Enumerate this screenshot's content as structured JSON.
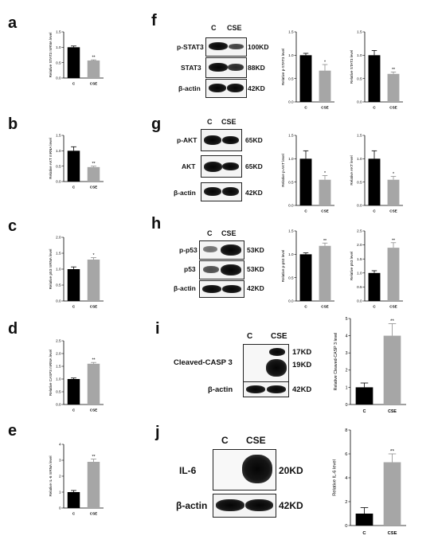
{
  "panels": {
    "a": "a",
    "b": "b",
    "c": "c",
    "d": "d",
    "e": "e",
    "f": "f",
    "g": "g",
    "h": "h",
    "i": "i",
    "j": "j"
  },
  "colors": {
    "control": "#000000",
    "cse": "#a6a6a6"
  },
  "blots": {
    "f": {
      "cols": [
        "C",
        "CSE"
      ],
      "rows": [
        {
          "name": "p-STAT3",
          "size": "100KD"
        },
        {
          "name": "STAT3",
          "size": "88KD"
        },
        {
          "name": "β-actin",
          "size": "42KD"
        }
      ]
    },
    "g": {
      "cols": [
        "C",
        "CSE"
      ],
      "rows": [
        {
          "name": "p-AKT",
          "size": "65KD"
        },
        {
          "name": "AKT",
          "size": "65KD"
        },
        {
          "name": "β-actin",
          "size": "42KD"
        }
      ]
    },
    "h": {
      "cols": [
        "C",
        "CSE"
      ],
      "rows": [
        {
          "name": "p-p53",
          "size": "53KD"
        },
        {
          "name": "p53",
          "size": "53KD"
        },
        {
          "name": "β-actin",
          "size": "42KD"
        }
      ]
    },
    "i": {
      "cols": [
        "C",
        "CSE"
      ],
      "rows": [
        {
          "name": "Cleaved-CASP 3",
          "size": "17KD",
          "size2": "19KD"
        },
        {
          "name": "β-actin",
          "size": "42KD"
        }
      ]
    },
    "j": {
      "cols": [
        "C",
        "CSE"
      ],
      "rows": [
        {
          "name": "IL-6",
          "size": "20KD"
        },
        {
          "name": "β-actin",
          "size": "42KD"
        }
      ]
    }
  },
  "chart_data": [
    {
      "id": "a",
      "type": "bar",
      "categories": [
        "C",
        "CSE"
      ],
      "values": [
        1.0,
        0.57
      ],
      "errors": [
        0.04,
        0.02
      ],
      "ylabel": "Relative STAT3 mRNA level",
      "ylim": [
        0,
        1.5
      ],
      "yticks": [
        "0.0",
        "0.5",
        "1.0",
        "1.5"
      ],
      "sig": [
        "",
        "**"
      ]
    },
    {
      "id": "b",
      "type": "bar",
      "categories": [
        "C",
        "CSE"
      ],
      "values": [
        1.0,
        0.47
      ],
      "errors": [
        0.13,
        0.03
      ],
      "ylabel": "Relative AKT mRNA level",
      "ylim": [
        0,
        1.5
      ],
      "yticks": [
        "0.0",
        "0.5",
        "1.0",
        "1.5"
      ],
      "sig": [
        "",
        "**"
      ]
    },
    {
      "id": "c",
      "type": "bar",
      "categories": [
        "C",
        "CSE"
      ],
      "values": [
        1.0,
        1.3
      ],
      "errors": [
        0.07,
        0.06
      ],
      "ylabel": "Relative p53 mRNA level",
      "ylim": [
        0,
        2.0
      ],
      "yticks": [
        "0.0",
        "0.5",
        "1.0",
        "1.5",
        "2.0"
      ],
      "sig": [
        "",
        "*"
      ]
    },
    {
      "id": "d",
      "type": "bar",
      "categories": [
        "C",
        "CSE"
      ],
      "values": [
        1.0,
        1.6
      ],
      "errors": [
        0.04,
        0.05
      ],
      "ylabel": "Relative CASP3 mRNA level",
      "ylim": [
        0,
        2.5
      ],
      "yticks": [
        "0.0",
        "0.5",
        "1.0",
        "1.5",
        "2.0",
        "2.5"
      ],
      "sig": [
        "",
        "**"
      ]
    },
    {
      "id": "e",
      "type": "bar",
      "categories": [
        "C",
        "CSE"
      ],
      "values": [
        1.0,
        2.9
      ],
      "errors": [
        0.1,
        0.17
      ],
      "ylabel": "Relative IL-6 mRNA level",
      "ylim": [
        0,
        4
      ],
      "yticks": [
        "0",
        "1",
        "2",
        "3",
        "4"
      ],
      "sig": [
        "",
        "**"
      ]
    },
    {
      "id": "f1",
      "type": "bar",
      "categories": [
        "C",
        "CSE"
      ],
      "values": [
        1.0,
        0.67
      ],
      "errors": [
        0.04,
        0.13
      ],
      "ylabel": "Relative p-STAT3 level",
      "ylim": [
        0,
        1.5
      ],
      "yticks": [
        "0.0",
        "0.5",
        "1.0",
        "1.5"
      ],
      "sig": [
        "",
        "*"
      ]
    },
    {
      "id": "f2",
      "type": "bar",
      "categories": [
        "C",
        "CSE"
      ],
      "values": [
        1.0,
        0.6
      ],
      "errors": [
        0.1,
        0.04
      ],
      "ylabel": "Relative STAT3 level",
      "ylim": [
        0,
        1.5
      ],
      "yticks": [
        "0.0",
        "0.5",
        "1.0",
        "1.5"
      ],
      "sig": [
        "",
        "**"
      ]
    },
    {
      "id": "g1",
      "type": "bar",
      "categories": [
        "C",
        "CSE"
      ],
      "values": [
        1.0,
        0.55
      ],
      "errors": [
        0.17,
        0.09
      ],
      "ylabel": "Relative p-AKT level",
      "ylim": [
        0,
        1.5
      ],
      "yticks": [
        "0.0",
        "0.5",
        "1.0",
        "1.5"
      ],
      "sig": [
        "",
        "*"
      ]
    },
    {
      "id": "g2",
      "type": "bar",
      "categories": [
        "C",
        "CSE"
      ],
      "values": [
        1.0,
        0.55
      ],
      "errors": [
        0.17,
        0.07
      ],
      "ylabel": "Relative AKT level",
      "ylim": [
        0,
        1.5
      ],
      "yticks": [
        "0.0",
        "0.5",
        "1.0",
        "1.5"
      ],
      "sig": [
        "",
        "*"
      ]
    },
    {
      "id": "h1",
      "type": "bar",
      "categories": [
        "C",
        "CSE"
      ],
      "values": [
        1.0,
        1.18
      ],
      "errors": [
        0.03,
        0.06
      ],
      "ylabel": "Relative p-p53 level",
      "ylim": [
        0,
        1.5
      ],
      "yticks": [
        "0.0",
        "0.5",
        "1.0",
        "1.5"
      ],
      "sig": [
        "",
        "**"
      ]
    },
    {
      "id": "h2",
      "type": "bar",
      "categories": [
        "C",
        "CSE"
      ],
      "values": [
        1.0,
        1.9
      ],
      "errors": [
        0.08,
        0.18
      ],
      "ylabel": "Relative p53 level",
      "ylim": [
        0,
        2.5
      ],
      "yticks": [
        "0.0",
        "0.5",
        "1.0",
        "1.5",
        "2.0",
        "2.5"
      ],
      "sig": [
        "",
        "**"
      ]
    },
    {
      "id": "i",
      "type": "bar",
      "categories": [
        "C",
        "CSE"
      ],
      "values": [
        1.0,
        4.0
      ],
      "errors": [
        0.25,
        0.7
      ],
      "ylabel": "Relative Cleaved-CASP 3 level",
      "ylim": [
        0,
        5
      ],
      "yticks": [
        "0",
        "1",
        "2",
        "3",
        "4",
        "5"
      ],
      "sig": [
        "",
        "**"
      ]
    },
    {
      "id": "j",
      "type": "bar",
      "categories": [
        "C",
        "CSE"
      ],
      "values": [
        1.0,
        5.3
      ],
      "errors": [
        0.5,
        0.7
      ],
      "ylabel": "Relative IL-6 level",
      "ylim": [
        0,
        8
      ],
      "yticks": [
        "0",
        "2",
        "4",
        "6",
        "8"
      ],
      "sig": [
        "",
        "**"
      ]
    }
  ]
}
